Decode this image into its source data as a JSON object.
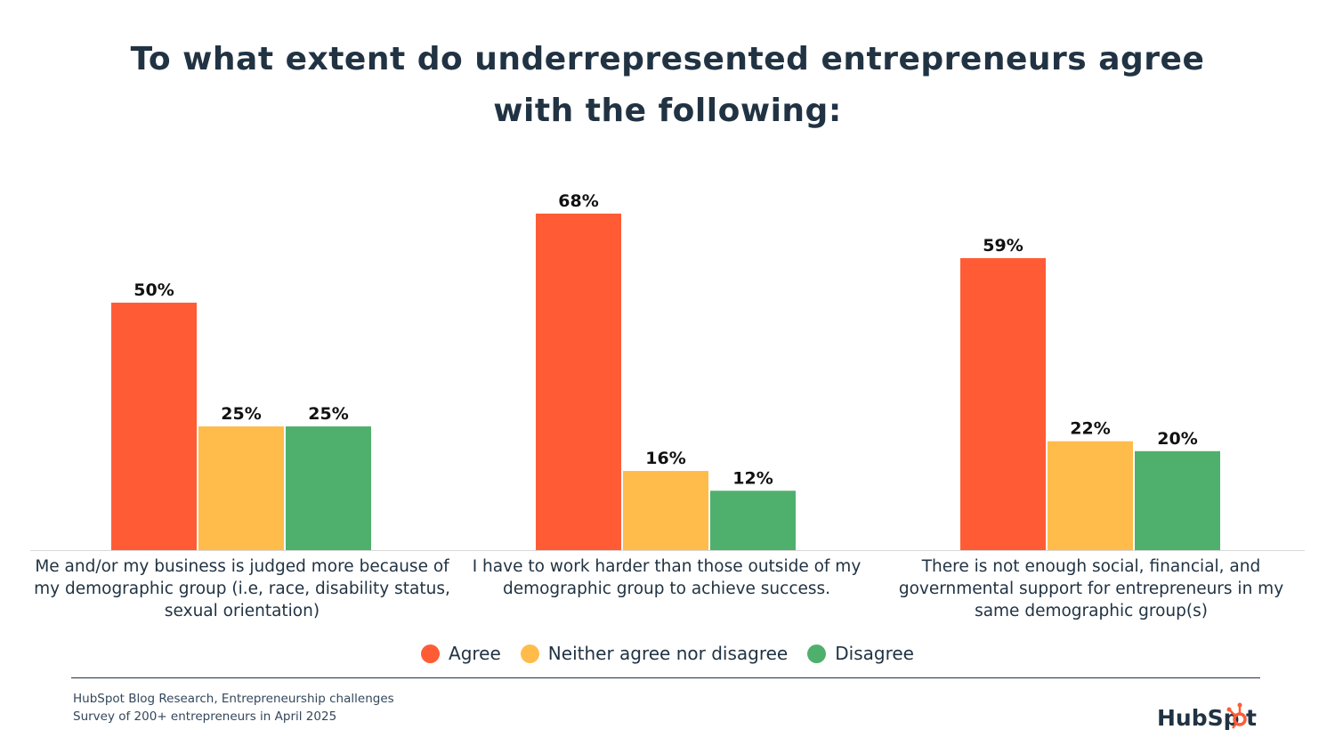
{
  "chart_data": {
    "type": "bar",
    "title": "To what extent do underrepresented entrepreneurs agree with the following:",
    "categories": [
      "Me and/or my business is judged more because of my demographic group (i.e, race, disability status, sexual orientation)",
      "I have to work harder than those outside of my demographic group to achieve success.",
      "There is not enough social, financial, and governmental support for entrepreneurs in my same demographic group(s)"
    ],
    "series": [
      {
        "name": "Agree",
        "values": [
          50,
          68,
          59
        ],
        "color": "#FF5C35"
      },
      {
        "name": "Neither agree nor disagree",
        "values": [
          25,
          16,
          22
        ],
        "color": "#FFBC4B"
      },
      {
        "name": "Disagree",
        "values": [
          25,
          12,
          20
        ],
        "color": "#4FB06D"
      }
    ],
    "value_suffix": "%",
    "ylim": [
      0,
      100
    ],
    "grid": false,
    "legend_position": "bottom"
  },
  "footer": {
    "source_line1": "HubSpot Blog Research, Entrepreneurship challenges",
    "source_line2": "Survey of 200+ entrepreneurs in April 2025",
    "logo_text": "HubSpot"
  },
  "colors": {
    "text": "#213343",
    "accent": "#FF5C35"
  }
}
